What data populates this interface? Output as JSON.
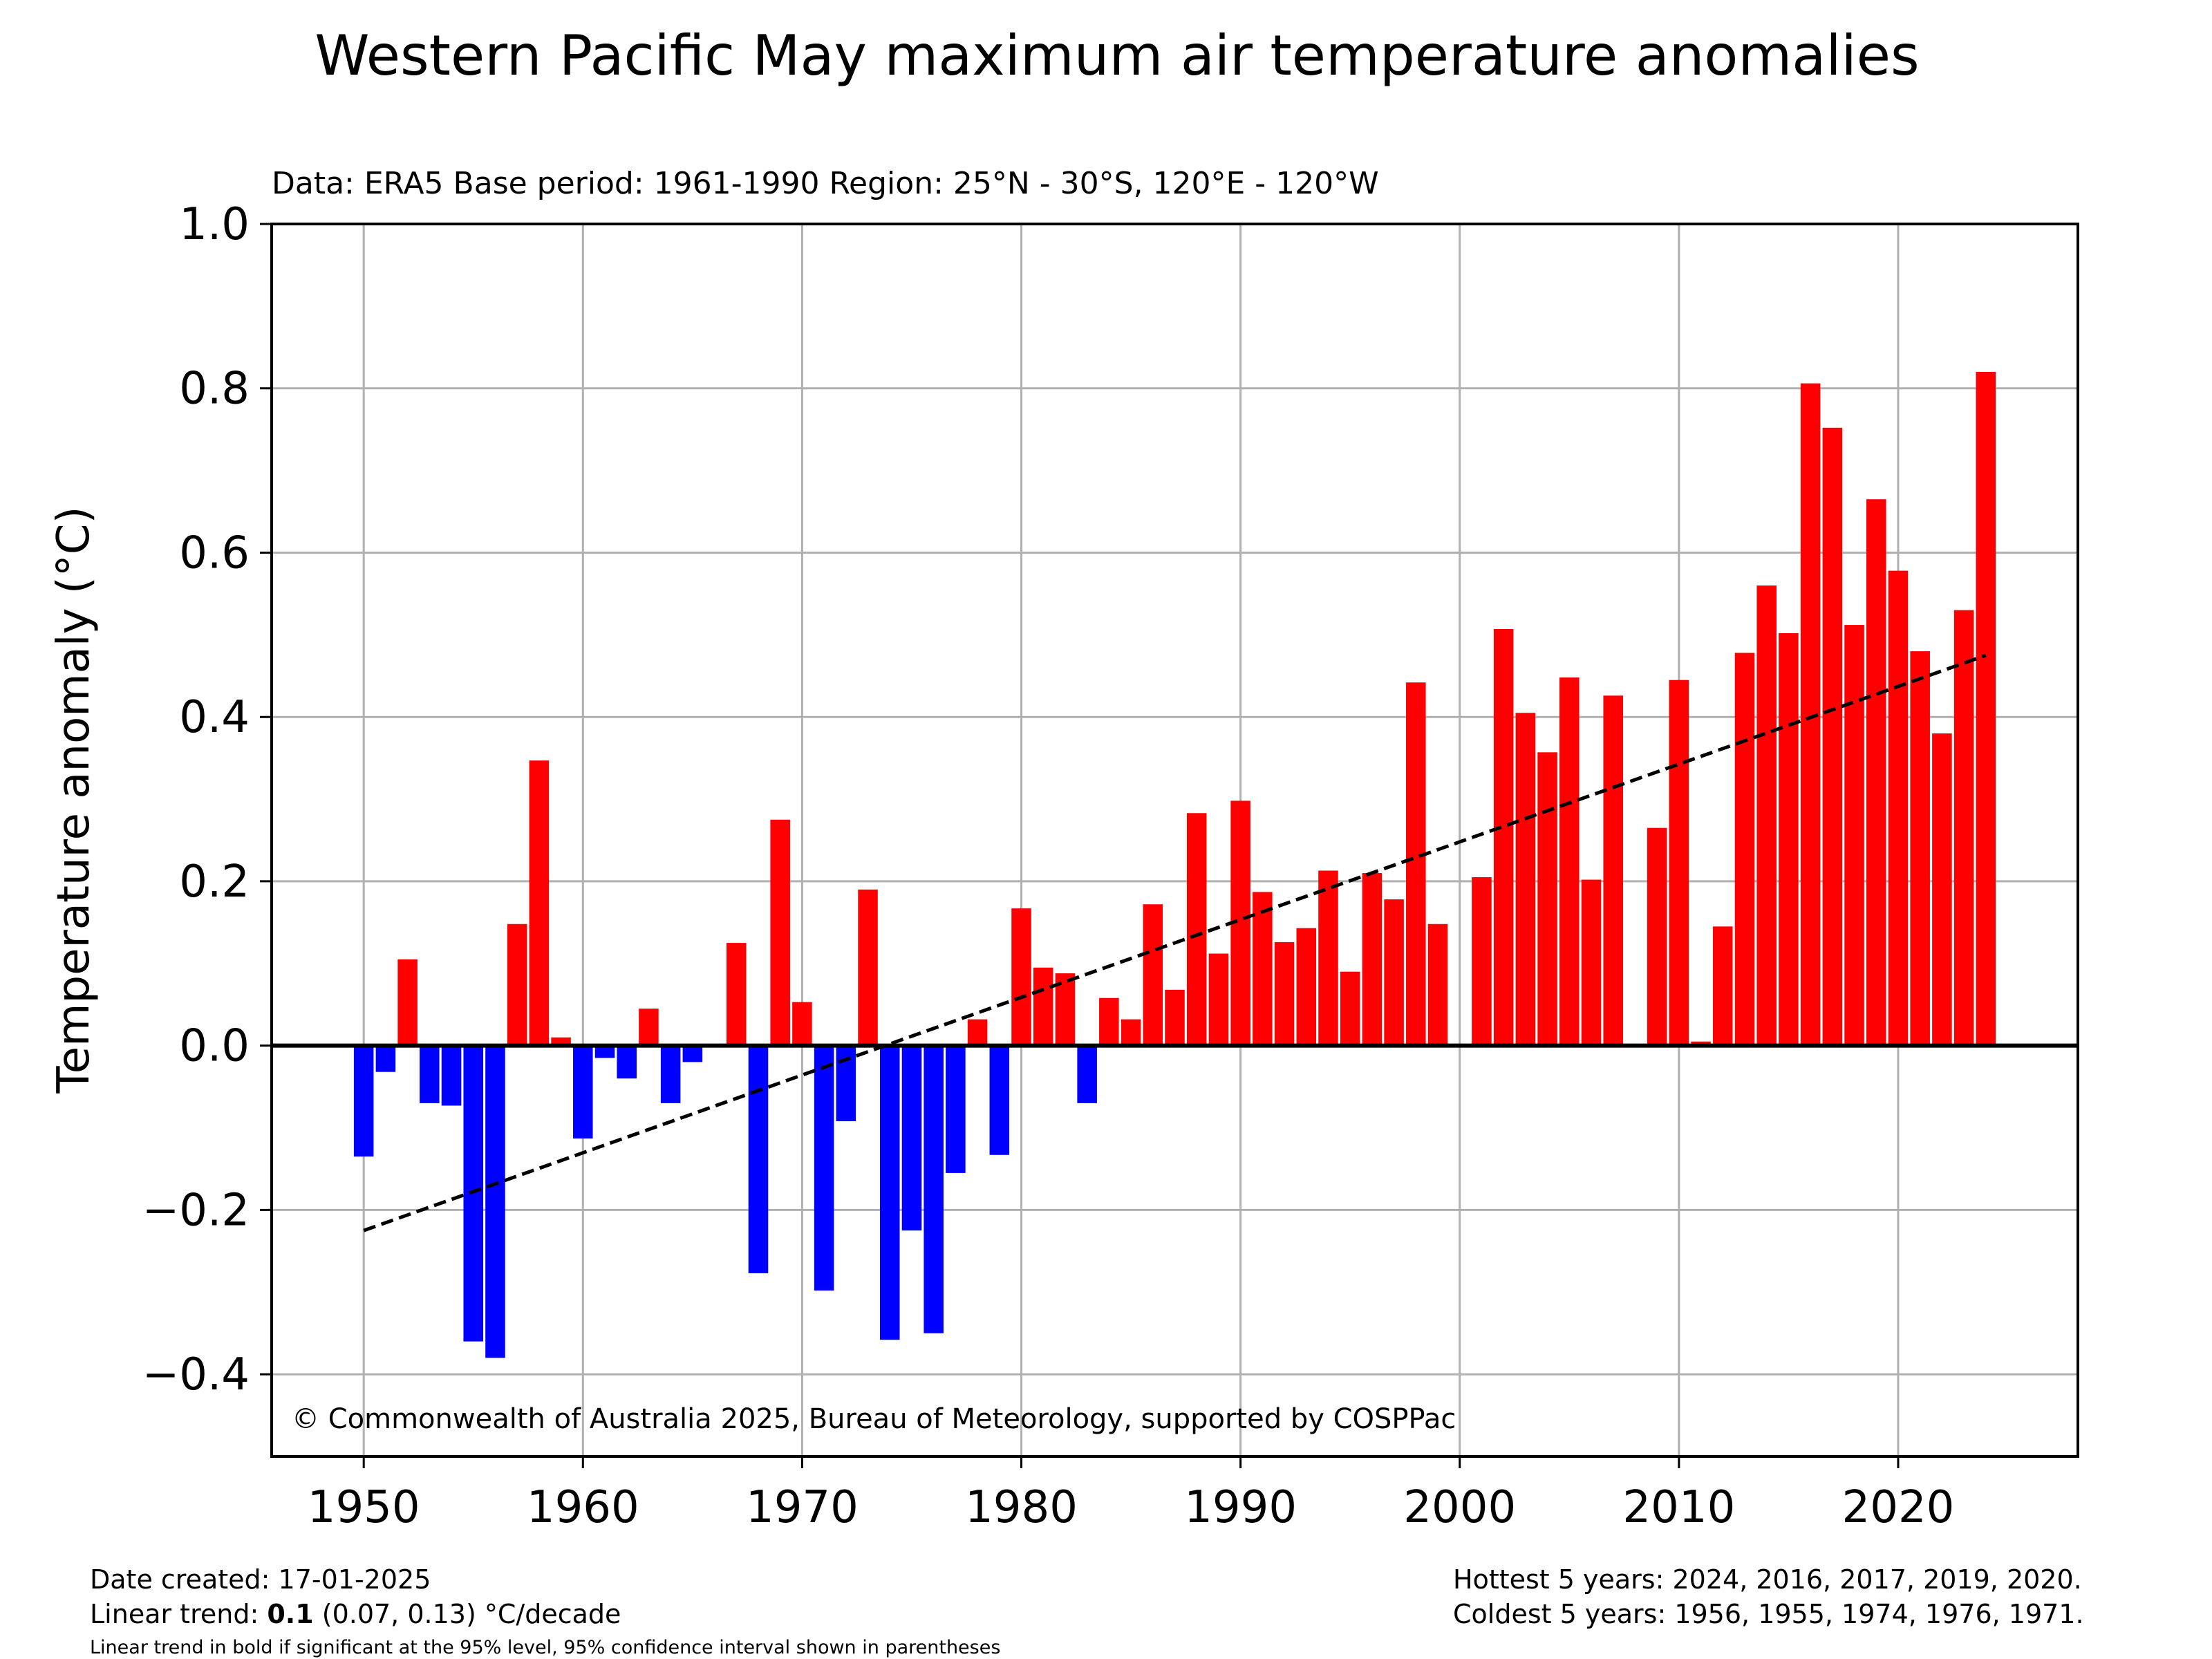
{
  "chart_data": {
    "type": "bar",
    "title": "Western Pacific May maximum air temperature anomalies",
    "subtitle": "Data: ERA5  Base period: 1961-1990  Region: 25°N - 30°S, 120°E - 120°W",
    "xlabel": "",
    "ylabel": "Temperature anomaly (°C)",
    "xlim": [
      1945.8,
      2028.2
    ],
    "ylim": [
      -0.5,
      1.0
    ],
    "xticks": [
      1950,
      1960,
      1970,
      1980,
      1990,
      2000,
      2010,
      2020
    ],
    "yticks": [
      -0.4,
      -0.2,
      0.0,
      0.2,
      0.4,
      0.6,
      0.8,
      1.0
    ],
    "ytick_labels": [
      "−0.4",
      "−0.2",
      "0.0",
      "0.2",
      "0.4",
      "0.6",
      "0.8",
      "1.0"
    ],
    "grid": true,
    "legend": "none",
    "colors": {
      "positive": "#ff0000",
      "negative": "#0000ff",
      "trend": "#000000",
      "zero_line": "#000000",
      "grid": "#b0b0b0"
    },
    "x": [
      1950,
      1951,
      1952,
      1953,
      1954,
      1955,
      1956,
      1957,
      1958,
      1959,
      1960,
      1961,
      1962,
      1963,
      1964,
      1965,
      1966,
      1967,
      1968,
      1969,
      1970,
      1971,
      1972,
      1973,
      1974,
      1975,
      1976,
      1977,
      1978,
      1979,
      1980,
      1981,
      1982,
      1983,
      1984,
      1985,
      1986,
      1987,
      1988,
      1989,
      1990,
      1991,
      1992,
      1993,
      1994,
      1995,
      1996,
      1997,
      1998,
      1999,
      2000,
      2001,
      2002,
      2003,
      2004,
      2005,
      2006,
      2007,
      2008,
      2009,
      2010,
      2011,
      2012,
      2013,
      2014,
      2015,
      2016,
      2017,
      2018,
      2019,
      2020,
      2021,
      2022,
      2023,
      2024
    ],
    "values": [
      -0.135,
      -0.032,
      0.105,
      -0.07,
      -0.073,
      -0.36,
      -0.38,
      0.148,
      0.347,
      0.01,
      -0.113,
      -0.015,
      -0.04,
      0.045,
      -0.07,
      -0.02,
      0.0,
      0.125,
      -0.277,
      0.275,
      0.053,
      -0.298,
      -0.092,
      0.19,
      -0.358,
      -0.225,
      -0.35,
      -0.155,
      0.032,
      -0.133,
      0.167,
      0.095,
      0.088,
      -0.07,
      0.058,
      0.032,
      0.172,
      0.068,
      0.283,
      0.112,
      0.298,
      0.187,
      0.126,
      0.143,
      0.213,
      0.09,
      0.21,
      0.178,
      0.442,
      0.148,
      0.0,
      0.205,
      0.507,
      0.405,
      0.357,
      0.448,
      0.202,
      0.426,
      0.0,
      0.265,
      0.445,
      0.005,
      0.145,
      0.478,
      0.56,
      0.502,
      0.806,
      0.752,
      0.512,
      0.665,
      0.578,
      0.48,
      0.38,
      0.53,
      0.82
    ],
    "trend": {
      "x": [
        1950,
        2024
      ],
      "y": [
        -0.225,
        0.475
      ]
    },
    "annotations": [
      "© Commonwealth of Australia 2025, Bureau of Meteorology, supported by COSPPac"
    ]
  },
  "footer": {
    "date_created": "Date created: 17-01-2025",
    "trend_prefix": "Linear trend: ",
    "trend_value": "0.1",
    "trend_suffix": " (0.07, 0.13) °C/decade",
    "note": "Linear trend in bold if significant at the 95% level, 95% confidence interval shown in parentheses",
    "hottest": "Hottest 5 years: 2024, 2016, 2017, 2019, 2020.",
    "coldest": "Coldest 5 years: 1956, 1955, 1974, 1976, 1971."
  }
}
